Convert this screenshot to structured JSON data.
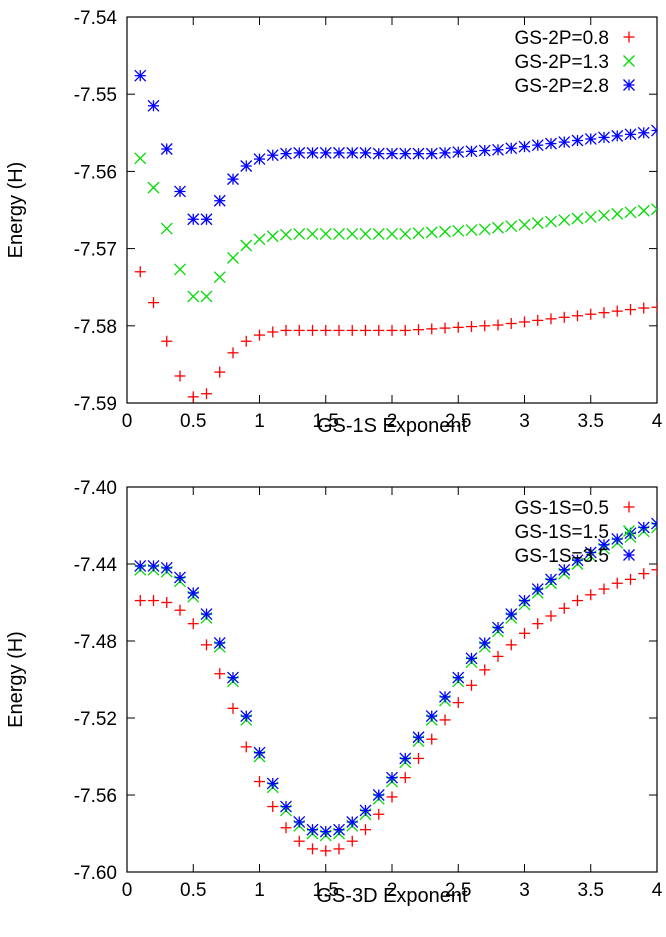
{
  "chart_data": [
    {
      "type": "scatter",
      "xlabel": "GS-1S Exponent",
      "ylabel": "Energy (H)",
      "xlim": [
        0,
        4
      ],
      "ylim": [
        -7.59,
        -7.54
      ],
      "xticks": [
        0,
        0.5,
        1,
        1.5,
        2,
        2.5,
        3,
        3.5,
        4
      ],
      "xtick_labels": [
        "0",
        "0.5",
        "1",
        "1.5",
        "2",
        "2.5",
        "3",
        "3.5",
        "4"
      ],
      "yticks": [
        -7.54,
        -7.55,
        -7.56,
        -7.57,
        -7.58,
        -7.59
      ],
      "ytick_labels": [
        "-7.54",
        "-7.55",
        "-7.56",
        "-7.57",
        "-7.58",
        "-7.59"
      ],
      "legend_position": "top-right",
      "grid": false,
      "x": [
        0.1,
        0.2,
        0.3,
        0.4,
        0.5,
        0.6,
        0.7,
        0.8,
        0.9,
        1.0,
        1.1,
        1.2,
        1.3,
        1.4,
        1.5,
        1.6,
        1.7,
        1.8,
        1.9,
        2.0,
        2.1,
        2.2,
        2.3,
        2.4,
        2.5,
        2.6,
        2.7,
        2.8,
        2.9,
        3.0,
        3.1,
        3.2,
        3.3,
        3.4,
        3.5,
        3.6,
        3.7,
        3.8,
        3.9,
        4.0
      ],
      "series": [
        {
          "name": "GS-2P=0.8",
          "marker": "plus",
          "color": "#ff0000",
          "values": [
            -7.573,
            -7.577,
            -7.582,
            -7.5865,
            -7.5892,
            -7.5888,
            -7.586,
            -7.5835,
            -7.582,
            -7.5812,
            -7.5808,
            -7.5806,
            -7.5806,
            -7.5806,
            -7.5806,
            -7.5806,
            -7.5806,
            -7.5806,
            -7.5806,
            -7.5806,
            -7.5806,
            -7.5805,
            -7.5804,
            -7.5803,
            -7.5802,
            -7.5801,
            -7.58,
            -7.5799,
            -7.5797,
            -7.5795,
            -7.5793,
            -7.5791,
            -7.5789,
            -7.5787,
            -7.5785,
            -7.5783,
            -7.5781,
            -7.5779,
            -7.5777,
            -7.5776
          ]
        },
        {
          "name": "GS-2P=1.3",
          "marker": "cross",
          "color": "#00dd00",
          "values": [
            -7.5583,
            -7.5621,
            -7.5674,
            -7.5727,
            -7.5762,
            -7.5762,
            -7.5737,
            -7.5712,
            -7.5696,
            -7.5688,
            -7.5684,
            -7.5682,
            -7.5681,
            -7.5681,
            -7.5681,
            -7.5681,
            -7.5681,
            -7.5681,
            -7.5681,
            -7.5681,
            -7.5681,
            -7.568,
            -7.5679,
            -7.5678,
            -7.5677,
            -7.5676,
            -7.5675,
            -7.5673,
            -7.5671,
            -7.5669,
            -7.5667,
            -7.5665,
            -7.5663,
            -7.5661,
            -7.5659,
            -7.5657,
            -7.5655,
            -7.5653,
            -7.5651,
            -7.5649
          ]
        },
        {
          "name": "GS-2P=2.8",
          "marker": "star",
          "color": "#0000ff",
          "values": [
            -7.5476,
            -7.5515,
            -7.5571,
            -7.5626,
            -7.5662,
            -7.5662,
            -7.5638,
            -7.561,
            -7.5593,
            -7.5584,
            -7.5579,
            -7.5577,
            -7.5576,
            -7.5576,
            -7.5576,
            -7.5576,
            -7.5576,
            -7.5576,
            -7.5577,
            -7.5577,
            -7.5577,
            -7.5577,
            -7.5577,
            -7.5576,
            -7.5575,
            -7.5574,
            -7.5573,
            -7.5572,
            -7.557,
            -7.5568,
            -7.5566,
            -7.5564,
            -7.5562,
            -7.556,
            -7.5558,
            -7.5556,
            -7.5554,
            -7.5552,
            -7.555,
            -7.5547
          ]
        }
      ]
    },
    {
      "type": "scatter",
      "xlabel": "GS-3D Exponent",
      "ylabel": "Energy (H)",
      "xlim": [
        0,
        4
      ],
      "ylim": [
        -7.6,
        -7.4
      ],
      "xticks": [
        0,
        0.5,
        1,
        1.5,
        2,
        2.5,
        3,
        3.5,
        4
      ],
      "xtick_labels": [
        "0",
        "0.5",
        "1",
        "1.5",
        "2",
        "2.5",
        "3",
        "3.5",
        "4"
      ],
      "yticks": [
        -7.4,
        -7.44,
        -7.48,
        -7.52,
        -7.56,
        -7.6
      ],
      "ytick_labels": [
        "-7.40",
        "-7.44",
        "-7.48",
        "-7.52",
        "-7.56",
        "-7.60"
      ],
      "legend_position": "top-right",
      "grid": false,
      "x": [
        0.1,
        0.2,
        0.3,
        0.4,
        0.5,
        0.6,
        0.7,
        0.8,
        0.9,
        1.0,
        1.1,
        1.2,
        1.3,
        1.4,
        1.5,
        1.6,
        1.7,
        1.8,
        1.9,
        2.0,
        2.1,
        2.2,
        2.3,
        2.4,
        2.5,
        2.6,
        2.7,
        2.8,
        2.9,
        3.0,
        3.1,
        3.2,
        3.3,
        3.4,
        3.5,
        3.6,
        3.7,
        3.8,
        3.9,
        4.0
      ],
      "series": [
        {
          "name": "GS-1S=0.5",
          "marker": "plus",
          "color": "#ff0000",
          "values": [
            -7.459,
            -7.459,
            -7.46,
            -7.464,
            -7.471,
            -7.482,
            -7.497,
            -7.515,
            -7.535,
            -7.553,
            -7.566,
            -7.577,
            -7.584,
            -7.588,
            -7.589,
            -7.588,
            -7.584,
            -7.578,
            -7.57,
            -7.561,
            -7.551,
            -7.541,
            -7.531,
            -7.521,
            -7.512,
            -7.503,
            -7.495,
            -7.488,
            -7.482,
            -7.476,
            -7.471,
            -7.467,
            -7.463,
            -7.459,
            -7.456,
            -7.453,
            -7.45,
            -7.448,
            -7.445,
            -7.443
          ]
        },
        {
          "name": "GS-1S=1.5",
          "marker": "cross",
          "color": "#00dd00",
          "values": [
            -7.443,
            -7.443,
            -7.444,
            -7.449,
            -7.457,
            -7.468,
            -7.483,
            -7.501,
            -7.521,
            -7.54,
            -7.556,
            -7.568,
            -7.576,
            -7.58,
            -7.581,
            -7.58,
            -7.576,
            -7.57,
            -7.562,
            -7.553,
            -7.543,
            -7.532,
            -7.521,
            -7.511,
            -7.501,
            -7.491,
            -7.483,
            -7.475,
            -7.468,
            -7.461,
            -7.455,
            -7.45,
            -7.445,
            -7.44,
            -7.436,
            -7.432,
            -7.429,
            -7.426,
            -7.423,
            -7.421
          ]
        },
        {
          "name": "GS-1S=3.5",
          "marker": "star",
          "color": "#0000ff",
          "values": [
            -7.441,
            -7.441,
            -7.442,
            -7.447,
            -7.455,
            -7.466,
            -7.481,
            -7.499,
            -7.519,
            -7.538,
            -7.554,
            -7.566,
            -7.574,
            -7.578,
            -7.579,
            -7.578,
            -7.574,
            -7.568,
            -7.56,
            -7.551,
            -7.541,
            -7.53,
            -7.519,
            -7.509,
            -7.499,
            -7.489,
            -7.481,
            -7.473,
            -7.466,
            -7.459,
            -7.453,
            -7.448,
            -7.443,
            -7.438,
            -7.434,
            -7.43,
            -7.427,
            -7.424,
            -7.421,
            -7.419
          ]
        }
      ]
    }
  ]
}
